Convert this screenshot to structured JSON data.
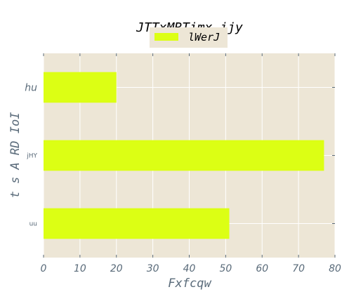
{
  "chart_data": {
    "type": "bar",
    "orientation": "horizontal",
    "title": "JTTxMRTimx ijy",
    "xlabel": "Fxfcqw",
    "ylabel": "t s A RD IoI",
    "categories": [
      "uu",
      "jHY",
      "hu"
    ],
    "series": [
      {
        "name": "lWerJ",
        "values": [
          51,
          77,
          20
        ]
      }
    ],
    "xlim": [
      0,
      80
    ],
    "xticks": [
      "0",
      "10",
      "20",
      "30",
      "40",
      "50",
      "60",
      "70",
      "80"
    ],
    "grid": true,
    "legend_position": "top-center",
    "colors": {
      "bar": "#dcff14",
      "plot_background": "#ede6d6",
      "grid": "#ffffff",
      "tick_text": "#5a6b7a"
    }
  }
}
